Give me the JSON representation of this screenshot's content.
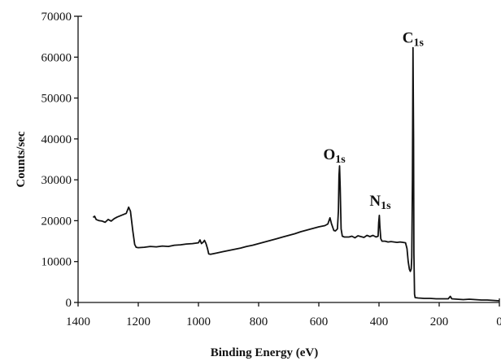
{
  "chart_data": {
    "type": "line",
    "title": "",
    "xlabel": "Binding Energy (eV)",
    "ylabel": "Counts/sec",
    "xlim": [
      1400,
      0
    ],
    "ylim": [
      0,
      70000
    ],
    "x_reversed": true,
    "grid": false,
    "legend": "none",
    "xticks": [
      1400,
      1200,
      1000,
      800,
      600,
      400,
      200,
      0
    ],
    "yticks": [
      0,
      10000,
      20000,
      30000,
      40000,
      50000,
      60000,
      70000
    ],
    "x_tick_labels": [
      "1400",
      "1200",
      "1000",
      "800",
      "600",
      "400",
      "200",
      "0"
    ],
    "y_tick_labels": [
      "0",
      "10000",
      "20000",
      "30000",
      "40000",
      "50000",
      "60000",
      "70000"
    ],
    "series": [
      {
        "color": "#111111",
        "points": [
          [
            1350,
            20800
          ],
          [
            1345,
            21100
          ],
          [
            1340,
            20300
          ],
          [
            1330,
            20000
          ],
          [
            1320,
            19900
          ],
          [
            1310,
            19600
          ],
          [
            1300,
            20300
          ],
          [
            1290,
            19900
          ],
          [
            1280,
            20500
          ],
          [
            1270,
            20900
          ],
          [
            1260,
            21200
          ],
          [
            1250,
            21500
          ],
          [
            1240,
            21800
          ],
          [
            1232,
            23300
          ],
          [
            1226,
            22300
          ],
          [
            1218,
            17500
          ],
          [
            1212,
            14200
          ],
          [
            1207,
            13500
          ],
          [
            1200,
            13400
          ],
          [
            1180,
            13500
          ],
          [
            1160,
            13700
          ],
          [
            1140,
            13600
          ],
          [
            1120,
            13800
          ],
          [
            1100,
            13700
          ],
          [
            1080,
            14000
          ],
          [
            1060,
            14100
          ],
          [
            1040,
            14300
          ],
          [
            1020,
            14400
          ],
          [
            1000,
            14600
          ],
          [
            995,
            15300
          ],
          [
            990,
            14400
          ],
          [
            985,
            14700
          ],
          [
            980,
            15200
          ],
          [
            975,
            14400
          ],
          [
            970,
            13200
          ],
          [
            966,
            11900
          ],
          [
            960,
            11800
          ],
          [
            940,
            12100
          ],
          [
            920,
            12400
          ],
          [
            900,
            12700
          ],
          [
            880,
            13000
          ],
          [
            860,
            13300
          ],
          [
            840,
            13700
          ],
          [
            820,
            14000
          ],
          [
            800,
            14400
          ],
          [
            780,
            14800
          ],
          [
            760,
            15200
          ],
          [
            740,
            15600
          ],
          [
            720,
            16000
          ],
          [
            700,
            16400
          ],
          [
            680,
            16800
          ],
          [
            660,
            17300
          ],
          [
            640,
            17700
          ],
          [
            620,
            18100
          ],
          [
            600,
            18500
          ],
          [
            580,
            18800
          ],
          [
            570,
            19200
          ],
          [
            563,
            20700
          ],
          [
            558,
            19300
          ],
          [
            550,
            17600
          ],
          [
            545,
            17500
          ],
          [
            538,
            18000
          ],
          [
            535,
            22500
          ],
          [
            533,
            31000
          ],
          [
            531,
            33400
          ],
          [
            529,
            28000
          ],
          [
            526,
            18000
          ],
          [
            522,
            16200
          ],
          [
            515,
            16000
          ],
          [
            500,
            16000
          ],
          [
            490,
            16200
          ],
          [
            480,
            15800
          ],
          [
            470,
            16300
          ],
          [
            460,
            16100
          ],
          [
            450,
            15900
          ],
          [
            440,
            16400
          ],
          [
            430,
            16100
          ],
          [
            420,
            16400
          ],
          [
            410,
            16000
          ],
          [
            403,
            16200
          ],
          [
            401,
            19500
          ],
          [
            399,
            21300
          ],
          [
            397,
            18500
          ],
          [
            394,
            15600
          ],
          [
            390,
            15000
          ],
          [
            380,
            15000
          ],
          [
            370,
            14800
          ],
          [
            360,
            14900
          ],
          [
            350,
            14800
          ],
          [
            340,
            14700
          ],
          [
            330,
            14800
          ],
          [
            320,
            14700
          ],
          [
            312,
            14600
          ],
          [
            307,
            13200
          ],
          [
            303,
            10000
          ],
          [
            299,
            8100
          ],
          [
            296,
            7600
          ],
          [
            293,
            8200
          ],
          [
            291,
            11000
          ],
          [
            289,
            30000
          ],
          [
            287,
            62300
          ],
          [
            285,
            40000
          ],
          [
            284,
            12000
          ],
          [
            282,
            2000
          ],
          [
            280,
            1200
          ],
          [
            270,
            1100
          ],
          [
            250,
            1000
          ],
          [
            230,
            1000
          ],
          [
            210,
            900
          ],
          [
            190,
            900
          ],
          [
            170,
            900
          ],
          [
            163,
            1500
          ],
          [
            158,
            900
          ],
          [
            140,
            800
          ],
          [
            120,
            700
          ],
          [
            100,
            800
          ],
          [
            80,
            700
          ],
          [
            60,
            600
          ],
          [
            40,
            600
          ],
          [
            20,
            500
          ],
          [
            0,
            400
          ]
        ]
      }
    ],
    "annotations": [
      {
        "main": "C",
        "sub": "1s",
        "x": 287,
        "y": 62300
      },
      {
        "main": "O",
        "sub": "1s",
        "x": 531,
        "y": 33400
      },
      {
        "main": "N",
        "sub": "1s",
        "x": 399,
        "y": 21300
      }
    ]
  }
}
